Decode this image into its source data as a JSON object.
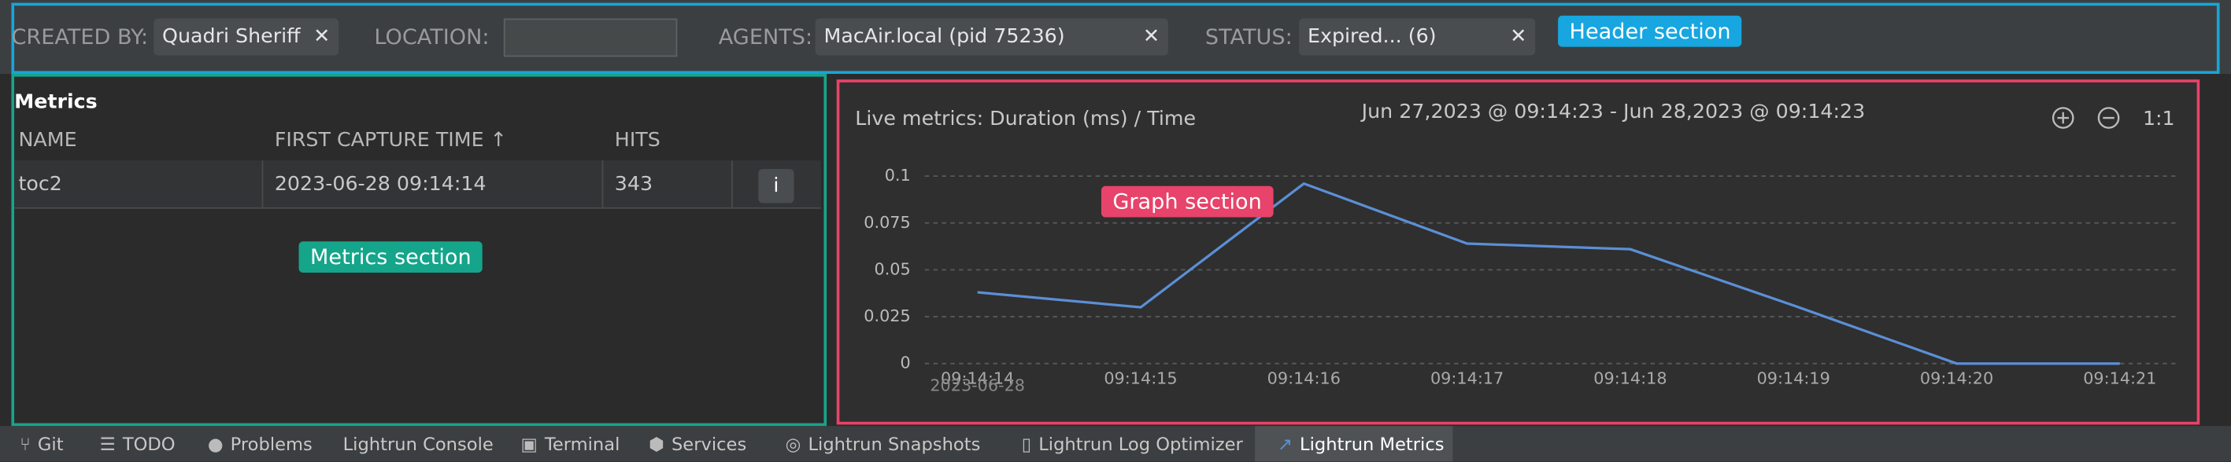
{
  "header": {
    "created_by_label": "CREATED BY:",
    "created_by_value": "Quadri Sheriff",
    "location_label": "LOCATION:",
    "agents_label": "AGENTS:",
    "agents_value": "MacAir.local (pid 75236)",
    "status_label": "STATUS:",
    "status_value": "Expired... (6)",
    "annotation": "Header section"
  },
  "metrics": {
    "title": "Metrics",
    "columns": [
      "NAME",
      "FIRST CAPTURE TIME ↑",
      "HITS"
    ],
    "rows": [
      [
        "toc2",
        "2023-06-28 09:14:14",
        343,
        "i"
      ]
    ],
    "annotation": "Metrics section"
  },
  "chart_data": {
    "type": "line",
    "title": "Live metrics: Duration (ms) / Time",
    "range_text": "Jun 27,2023 @ 09:14:23 - Jun 28,2023 @ 09:14:23",
    "zoom_label": "1:1",
    "annotation": "Graph section",
    "categories": [
      "09:14:14",
      "09:14:15",
      "09:14:16",
      "09:14:17",
      "09:14:18",
      "09:14:19",
      "09:14:20",
      "09:14:21"
    ],
    "first_category_date": "2023-06-28",
    "series": [
      {
        "color": "#5b8fd6",
        "values": [
          0.038,
          0.03,
          0.096,
          0.064,
          0.061,
          0.031,
          0,
          0
        ]
      }
    ],
    "ylim": [
      0,
      0.1
    ],
    "yticks": [
      0,
      0.025,
      0.05,
      0.075,
      0.1
    ],
    "grid": true
  },
  "tabs": [
    "Git",
    "TODO",
    "Problems",
    "Lightrun Console",
    "Terminal",
    "Services",
    "Lightrun Snapshots",
    "Lightrun Log Optimizer",
    "Lightrun Metrics"
  ]
}
